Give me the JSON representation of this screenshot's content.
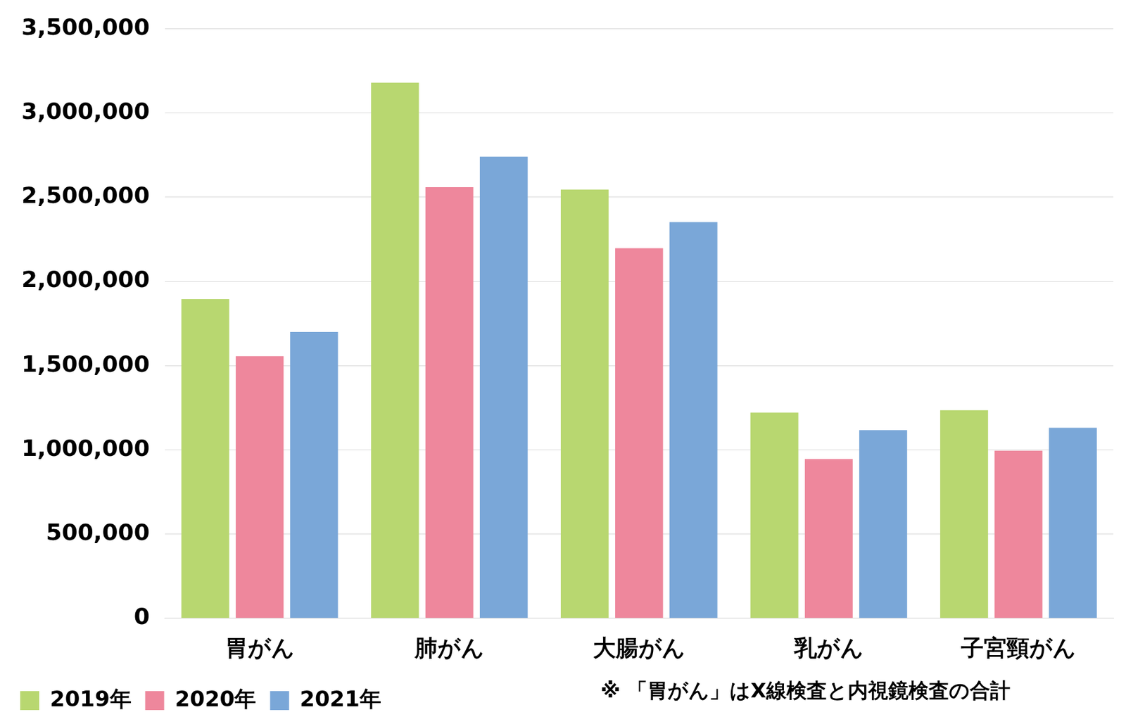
{
  "chart_data": {
    "type": "bar",
    "categories": [
      "胃がん",
      "肺がん",
      "大腸がん",
      "乳がん",
      "子宮頸がん"
    ],
    "series": [
      {
        "name": "2019年",
        "color": "#b8d770",
        "values": [
          1895000,
          3180000,
          2546000,
          1221000,
          1235000
        ]
      },
      {
        "name": "2020年",
        "color": "#ee879c",
        "values": [
          1556000,
          2560000,
          2198000,
          945000,
          995000
        ]
      },
      {
        "name": "2021年",
        "color": "#7aa7d8",
        "values": [
          1700000,
          2741000,
          2352000,
          1117000,
          1131000
        ]
      }
    ],
    "ylim": [
      0,
      3500000
    ],
    "yticks": [
      0,
      {
        "value": 500000,
        "label": "500,000"
      },
      {
        "value": 1000000,
        "label": "1,000,000"
      },
      {
        "value": 1500000,
        "label": "1,500,000"
      },
      {
        "value": 2000000,
        "label": "2,000,000"
      },
      {
        "value": 2500000,
        "label": "2,500,000"
      },
      {
        "value": 3000000,
        "label": "3,000,000"
      },
      {
        "value": 3500000,
        "label": "3,500,000"
      }
    ],
    "grid": true,
    "legend": "bottom",
    "annotations": [
      "※ 「胃がん」はX線検査と内視鏡検査の合計"
    ]
  }
}
